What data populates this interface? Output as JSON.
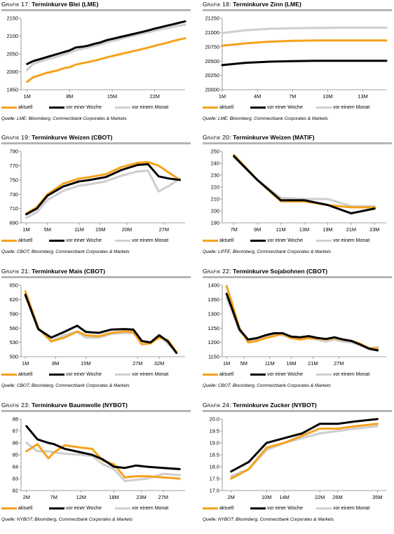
{
  "colors": {
    "aktuell": "#f5a21b",
    "woche": "#000000",
    "monat": "#cfcfcf",
    "rule": "#b5b5b5",
    "axis": "#808080"
  },
  "legend_labels": [
    "aktuell",
    "vor einer Woche",
    "vor einem Monat"
  ],
  "chart_data": [
    {
      "type": "line",
      "title_prefix": "Grafik 17:",
      "title": "Terminkurve Blei (LME)",
      "source": "Quelle: LME; Bloomberg, Commerzbank Corporates & Markets",
      "xlabel": "",
      "ylabel": "",
      "x_ticks": [
        "1M",
        "8M",
        "15M",
        "22M"
      ],
      "x_tick_pos": [
        1,
        8,
        15,
        22
      ],
      "xlim": [
        0,
        27
      ],
      "ylim": [
        1950,
        2150
      ],
      "y_ticks": [
        1950,
        2000,
        2050,
        2100,
        2150
      ],
      "series": [
        {
          "name": "aktuell",
          "x": [
            1,
            2,
            3,
            4,
            5,
            6,
            7,
            8,
            9,
            10,
            11,
            12,
            13,
            14,
            15,
            16,
            17,
            18,
            19,
            20,
            21,
            22,
            23,
            24,
            25,
            26,
            27
          ],
          "values": [
            1972,
            1985,
            1990,
            1996,
            2000,
            2004,
            2010,
            2013,
            2020,
            2024,
            2027,
            2031,
            2035,
            2040,
            2044,
            2048,
            2052,
            2056,
            2060,
            2064,
            2068,
            2073,
            2077,
            2081,
            2086,
            2090,
            2094
          ]
        },
        {
          "name": "vor einer Woche",
          "x": [
            1,
            2,
            3,
            4,
            5,
            6,
            7,
            8,
            9,
            10,
            11,
            12,
            13,
            14,
            15,
            16,
            17,
            18,
            19,
            20,
            21,
            22,
            23,
            24,
            25,
            26,
            27
          ],
          "values": [
            2022,
            2030,
            2035,
            2040,
            2045,
            2050,
            2055,
            2060,
            2068,
            2070,
            2073,
            2078,
            2082,
            2088,
            2092,
            2096,
            2100,
            2104,
            2108,
            2112,
            2116,
            2121,
            2125,
            2129,
            2133,
            2137,
            2141
          ]
        },
        {
          "name": "vor einem Monat",
          "x": [
            1,
            2,
            3,
            4,
            5,
            6,
            7,
            8,
            9,
            10,
            11,
            12,
            13,
            14,
            15,
            16,
            17,
            18,
            19,
            20,
            21,
            22,
            23,
            24,
            25,
            26,
            27
          ],
          "values": [
            2005,
            2022,
            2028,
            2034,
            2038,
            2043,
            2048,
            2054,
            2060,
            2064,
            2068,
            2072,
            2076,
            2082,
            2086,
            2090,
            2095,
            2099,
            2103,
            2107,
            2111,
            2115,
            2119,
            2122,
            2126,
            2129,
            2132
          ]
        }
      ]
    },
    {
      "type": "line",
      "title_prefix": "Grafik 18:",
      "title": "Terminkurve Zinn (LME)",
      "source": "Quelle: LME; Bloomberg, Commerzbank Corporates & Markets",
      "xlabel": "",
      "ylabel": "",
      "x_ticks": [
        "1M",
        "4M",
        "7M",
        "10M",
        "13M"
      ],
      "x_tick_pos": [
        1,
        4,
        7,
        10,
        13
      ],
      "xlim": [
        1,
        15
      ],
      "ylim": [
        20000,
        21250
      ],
      "y_ticks": [
        20000,
        20250,
        20500,
        20750,
        21000,
        21250
      ],
      "series": [
        {
          "name": "aktuell",
          "x": [
            1,
            3,
            5,
            7,
            9,
            11,
            13,
            15
          ],
          "values": [
            20770,
            20810,
            20840,
            20855,
            20860,
            20860,
            20860,
            20860
          ]
        },
        {
          "name": "vor einer Woche",
          "x": [
            1,
            3,
            5,
            7,
            9,
            11,
            13,
            15
          ],
          "values": [
            20430,
            20470,
            20490,
            20500,
            20505,
            20505,
            20505,
            20505
          ]
        },
        {
          "name": "vor einem Monat",
          "x": [
            1,
            3,
            5,
            7,
            9,
            11,
            13,
            15
          ],
          "values": [
            20990,
            21040,
            21065,
            21075,
            21080,
            21085,
            21085,
            21085
          ]
        }
      ]
    },
    {
      "type": "line",
      "title_prefix": "Grafik 19:",
      "title": "Terminkurve Weizen (CBOT)",
      "source": "Quelle: CBOT; Bloomberg, Commerzbank Corporates & Markets",
      "xlabel": "",
      "ylabel": "",
      "x_ticks": [
        "1M",
        "5M",
        "11M",
        "15M",
        "20M",
        "27M"
      ],
      "x_tick_pos": [
        1,
        5,
        11,
        15,
        20,
        27
      ],
      "xlim": [
        0,
        31
      ],
      "ylim": [
        690,
        790
      ],
      "y_ticks": [
        690,
        710,
        730,
        750,
        770,
        790
      ],
      "series": [
        {
          "name": "aktuell",
          "x": [
            1,
            3,
            5,
            8,
            11,
            13,
            16,
            19,
            22,
            24,
            26,
            28,
            30
          ],
          "values": [
            703,
            712,
            730,
            745,
            752,
            754,
            758,
            768,
            774,
            775,
            770,
            760,
            750
          ]
        },
        {
          "name": "vor einer Woche",
          "x": [
            1,
            3,
            5,
            8,
            11,
            13,
            16,
            19,
            22,
            24,
            26,
            28,
            30
          ],
          "values": [
            702,
            710,
            728,
            741,
            748,
            750,
            754,
            764,
            771,
            772,
            755,
            752,
            750
          ]
        },
        {
          "name": "vor einem Monat",
          "x": [
            1,
            3,
            5,
            8,
            11,
            13,
            16,
            19,
            22,
            24,
            26,
            28,
            30
          ],
          "values": [
            697,
            705,
            722,
            735,
            742,
            744,
            748,
            756,
            762,
            763,
            734,
            742,
            752
          ]
        }
      ]
    },
    {
      "type": "line",
      "title_prefix": "Grafik 20:",
      "title": "Terminkurve Weizen (MATIF)",
      "source": "Quelle: LIFFE; Bloomberg, Commerzbank Corporates & Markets",
      "xlabel": "",
      "ylabel": "",
      "x_ticks": [
        "7M",
        "9M",
        "11M",
        "13M",
        "19M",
        "21M",
        "23M"
      ],
      "x_tick_pos": [
        1,
        2,
        3,
        4,
        5,
        6,
        7
      ],
      "xlim": [
        0.5,
        7.5
      ],
      "ylim": [
        190,
        250
      ],
      "y_ticks": [
        190,
        200,
        210,
        220,
        230,
        240,
        250
      ],
      "series": [
        {
          "name": "aktuell",
          "x": [
            1,
            2,
            3,
            4,
            5,
            6,
            7
          ],
          "values": [
            247,
            226,
            208,
            208,
            205,
            203,
            203
          ]
        },
        {
          "name": "vor einer Woche",
          "x": [
            1,
            2,
            3,
            4,
            5,
            6,
            7
          ],
          "values": [
            246,
            226,
            209,
            209,
            205,
            198,
            202
          ]
        },
        {
          "name": "vor einem Monat",
          "x": [
            1,
            2,
            3,
            4,
            5,
            6,
            7
          ],
          "values": [
            245,
            226,
            211,
            210,
            210,
            204,
            204
          ]
        }
      ]
    },
    {
      "type": "line",
      "title_prefix": "Grafik 21:",
      "title": "Terminkurve Mais (CBOT)",
      "source": "Quelle: CBOT; Bloomberg, Commerzbank Corporates & Markets",
      "xlabel": "",
      "ylabel": "",
      "x_ticks": [
        "1M",
        "8M",
        "15M",
        "27M",
        "32M"
      ],
      "x_tick_pos": [
        1,
        8,
        15,
        27,
        32
      ],
      "xlim": [
        0,
        38
      ],
      "ylim": [
        500,
        650
      ],
      "y_ticks": [
        500,
        530,
        560,
        590,
        620,
        650
      ],
      "series": [
        {
          "name": "aktuell",
          "x": [
            1,
            4,
            7,
            10,
            13,
            15,
            18,
            21,
            24,
            26,
            28,
            30,
            32,
            34,
            36
          ],
          "values": [
            637,
            560,
            532,
            540,
            553,
            545,
            543,
            550,
            553,
            552,
            526,
            528,
            540,
            535,
            510
          ]
        },
        {
          "name": "vor einer Woche",
          "x": [
            1,
            4,
            7,
            10,
            13,
            15,
            18,
            21,
            24,
            26,
            28,
            30,
            32,
            34,
            36
          ],
          "values": [
            630,
            558,
            540,
            552,
            565,
            552,
            550,
            557,
            558,
            557,
            533,
            530,
            545,
            532,
            508
          ]
        },
        {
          "name": "vor einem Monat",
          "x": [
            1,
            4,
            7,
            10,
            13,
            15,
            18,
            21,
            24,
            26,
            28,
            30,
            32,
            34,
            36
          ],
          "values": [
            628,
            558,
            533,
            545,
            552,
            540,
            540,
            548,
            550,
            549,
            532,
            530,
            545,
            527,
            510
          ]
        }
      ]
    },
    {
      "type": "line",
      "title_prefix": "Grafik 22:",
      "title": "Terminkurve Sojabohnen (CBOT)",
      "source": "Quelle: CBOT; Bloomberg, Commerzbank Corporates & Markets",
      "xlabel": "",
      "ylabel": "",
      "x_ticks": [
        "1M",
        "5M",
        "11M",
        "16M",
        "21M",
        "27M"
      ],
      "x_tick_pos": [
        1,
        5,
        11,
        16,
        21,
        27
      ],
      "xlim": [
        0,
        38
      ],
      "ylim": [
        1150,
        1400
      ],
      "y_ticks": [
        1150,
        1200,
        1250,
        1300,
        1350,
        1400
      ],
      "series": [
        {
          "name": "aktuell",
          "x": [
            1,
            2,
            4,
            6,
            8,
            10,
            12,
            14,
            16,
            18,
            20,
            22,
            24,
            26,
            28,
            30,
            32,
            34,
            36
          ],
          "values": [
            1397,
            1350,
            1250,
            1200,
            1205,
            1215,
            1222,
            1230,
            1215,
            1210,
            1215,
            1213,
            1210,
            1215,
            1210,
            1205,
            1195,
            1180,
            1178
          ]
        },
        {
          "name": "vor einer Woche",
          "x": [
            1,
            2,
            4,
            6,
            8,
            10,
            12,
            14,
            16,
            18,
            20,
            22,
            24,
            26,
            28,
            30,
            32,
            34,
            36
          ],
          "values": [
            1370,
            1330,
            1245,
            1210,
            1215,
            1225,
            1232,
            1232,
            1220,
            1218,
            1222,
            1216,
            1212,
            1218,
            1210,
            1205,
            1192,
            1178,
            1172
          ]
        },
        {
          "name": "vor einem Monat",
          "x": [
            1,
            2,
            4,
            6,
            8,
            10,
            12,
            14,
            16,
            18,
            20,
            22,
            24,
            26,
            28,
            30,
            32,
            34,
            36
          ],
          "values": [
            1355,
            1320,
            1240,
            1208,
            1212,
            1220,
            1228,
            1225,
            1215,
            1213,
            1215,
            1210,
            1203,
            1210,
            1203,
            1200,
            1190,
            1180,
            1183
          ]
        }
      ]
    },
    {
      "type": "line",
      "title_prefix": "Grafik 23:",
      "title": "Terminkurve Baumwolle (NYBOT)",
      "source": "Quelle: NYBOT; Bloomberg, Commerzbank Corporates & Markets",
      "xlabel": "",
      "ylabel": "",
      "x_ticks": [
        "2M",
        "7M",
        "12M",
        "18M",
        "23M",
        "27M"
      ],
      "x_tick_pos": [
        2,
        7,
        12,
        18,
        23,
        27
      ],
      "xlim": [
        1,
        31
      ],
      "ylim": [
        82,
        88
      ],
      "y_ticks": [
        82,
        83,
        84,
        85,
        86,
        87,
        88
      ],
      "series": [
        {
          "name": "aktuell",
          "x": [
            2,
            4,
            6,
            7,
            9,
            12,
            14,
            16,
            18,
            20,
            22,
            24,
            27,
            30
          ],
          "values": [
            85.3,
            85.9,
            84.7,
            85.2,
            85.8,
            85.6,
            85.5,
            84.5,
            84.2,
            83.1,
            83.2,
            83.2,
            83.1,
            83.0
          ]
        },
        {
          "name": "vor einer Woche",
          "x": [
            2,
            4,
            6,
            7,
            9,
            12,
            14,
            16,
            18,
            20,
            22,
            24,
            27,
            30
          ],
          "values": [
            87.4,
            86.3,
            86.0,
            85.9,
            85.5,
            85.2,
            85.0,
            84.6,
            84.0,
            83.9,
            84.1,
            84.0,
            83.9,
            83.8
          ]
        },
        {
          "name": "vor einem Monat",
          "x": [
            2,
            4,
            6,
            7,
            9,
            12,
            14,
            16,
            18,
            20,
            22,
            24,
            27,
            30
          ],
          "values": [
            86.0,
            85.3,
            85.3,
            85.2,
            85.1,
            85.0,
            84.9,
            84.2,
            83.8,
            82.8,
            82.9,
            83.0,
            83.4,
            83.3
          ]
        }
      ]
    },
    {
      "type": "line",
      "title_prefix": "Grafik 24:",
      "title": "Terminkurve Zucker (NYBOT)",
      "source": "Quelle: NYBOT; Bloomberg, Commerzbank Corporates & Markets",
      "xlabel": "",
      "ylabel": "",
      "x_ticks": [
        "2M",
        "10M",
        "14M",
        "22M",
        "26M",
        "35M"
      ],
      "x_tick_pos": [
        2,
        10,
        14,
        22,
        26,
        35
      ],
      "xlim": [
        0,
        37
      ],
      "ylim": [
        17.0,
        20.0
      ],
      "y_ticks": [
        17.0,
        17.5,
        18.0,
        18.5,
        19.0,
        19.5,
        20.0
      ],
      "y_tick_labels": [
        "17.0",
        "17.5",
        "18.0",
        "18.5",
        "19.0",
        "19.5",
        "20.0"
      ],
      "series": [
        {
          "name": "aktuell",
          "x": [
            2,
            6,
            10,
            14,
            18,
            22,
            26,
            30,
            35
          ],
          "values": [
            17.5,
            17.9,
            18.8,
            19.0,
            19.3,
            19.6,
            19.6,
            19.7,
            19.8
          ]
        },
        {
          "name": "vor einer Woche",
          "x": [
            2,
            6,
            10,
            14,
            18,
            22,
            26,
            30,
            35
          ],
          "values": [
            17.8,
            18.2,
            19.0,
            19.2,
            19.4,
            19.8,
            19.8,
            19.9,
            20.0
          ]
        },
        {
          "name": "vor einem Monat",
          "x": [
            2,
            6,
            10,
            14,
            18,
            22,
            26,
            30,
            35
          ],
          "values": [
            17.6,
            17.9,
            18.7,
            19.0,
            19.2,
            19.4,
            19.5,
            19.6,
            19.7
          ]
        }
      ]
    }
  ]
}
